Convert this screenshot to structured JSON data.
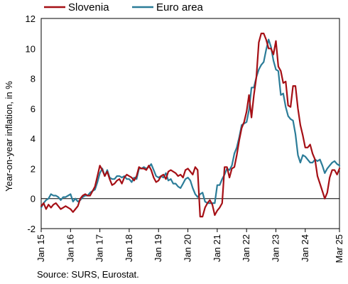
{
  "chart_data": {
    "type": "line",
    "ylabel": "Year-on-year inflation, in %",
    "source": "Source: SURS, Eurostat.",
    "ylim": [
      -2,
      12
    ],
    "y_ticks": [
      "-2",
      "0",
      "2",
      "4",
      "6",
      "8",
      "10",
      "12"
    ],
    "x_tick_labels": [
      "Jan 15",
      "Jan 16",
      "Jan 17",
      "Jan 18",
      "Jan 19",
      "Jan 20",
      "Jan 21",
      "Jan 22",
      "Jan 23",
      "Jan 24",
      "Mar 25"
    ],
    "x_tick_months": [
      0,
      12,
      24,
      36,
      48,
      60,
      72,
      84,
      96,
      108,
      122
    ],
    "legend_position": "top-left",
    "series": [
      {
        "name": "Slovenia",
        "color": "#a50f15",
        "values": [
          -0.5,
          -0.3,
          -0.7,
          -0.4,
          -0.6,
          -0.4,
          -0.3,
          -0.5,
          -0.7,
          -0.6,
          -0.5,
          -0.6,
          -0.7,
          -0.9,
          -0.7,
          -0.5,
          0.0,
          0.2,
          0.3,
          0.2,
          0.2,
          0.5,
          0.8,
          1.5,
          2.2,
          1.9,
          1.5,
          1.8,
          1.3,
          0.9,
          1.0,
          1.2,
          1.3,
          1.0,
          1.4,
          1.6,
          1.5,
          1.4,
          1.2,
          1.5,
          2.1,
          2.0,
          2.0,
          1.9,
          2.2,
          1.9,
          1.4,
          1.1,
          1.2,
          1.5,
          1.6,
          1.3,
          1.8,
          1.9,
          1.8,
          1.7,
          1.5,
          1.6,
          1.4,
          1.9,
          2.0,
          1.8,
          1.6,
          2.1,
          1.9,
          -1.2,
          -1.2,
          -0.6,
          -0.3,
          -0.1,
          -0.4,
          -1.1,
          -0.8,
          -0.6,
          -0.3,
          2.1,
          2.1,
          1.4,
          2.0,
          2.1,
          2.9,
          3.9,
          4.7,
          5.1,
          5.8,
          6.9,
          5.4,
          6.9,
          8.1,
          10.4,
          11.0,
          11.0,
          10.6,
          10.0,
          10.0,
          9.6,
          10.5,
          8.8,
          8.5,
          7.7,
          7.8,
          6.2,
          6.1,
          7.5,
          7.5,
          6.0,
          4.9,
          4.2,
          3.4,
          3.4,
          3.6,
          3.0,
          2.6,
          1.5,
          1.0,
          0.5,
          0.0,
          0.4,
          1.4,
          1.9,
          1.9,
          1.6,
          2.0
        ]
      },
      {
        "name": "Euro area",
        "color": "#2b7c98",
        "values": [
          -0.6,
          -0.3,
          -0.1,
          0.0,
          0.3,
          0.2,
          0.2,
          0.1,
          -0.1,
          0.1,
          0.1,
          0.2,
          0.3,
          -0.2,
          0.0,
          -0.2,
          -0.1,
          0.1,
          0.2,
          0.2,
          0.4,
          0.5,
          0.6,
          1.1,
          1.7,
          2.0,
          1.5,
          1.9,
          1.4,
          1.3,
          1.3,
          1.5,
          1.5,
          1.4,
          1.5,
          1.3,
          1.3,
          1.1,
          1.4,
          1.3,
          2.0,
          2.0,
          2.1,
          2.0,
          2.1,
          2.3,
          1.9,
          1.5,
          1.4,
          1.5,
          1.4,
          1.7,
          1.2,
          1.3,
          1.0,
          1.0,
          0.8,
          0.7,
          1.0,
          1.3,
          1.4,
          1.2,
          0.7,
          0.3,
          0.1,
          0.3,
          0.4,
          -0.2,
          -0.3,
          -0.3,
          -0.3,
          -0.3,
          0.9,
          0.9,
          1.3,
          1.6,
          2.0,
          1.9,
          2.2,
          3.0,
          3.4,
          4.1,
          4.9,
          5.0,
          5.1,
          5.9,
          7.4,
          7.4,
          8.1,
          8.6,
          8.9,
          9.1,
          9.9,
          10.6,
          10.1,
          9.2,
          8.6,
          8.5,
          6.9,
          7.0,
          6.1,
          5.5,
          5.3,
          5.2,
          4.3,
          2.9,
          2.4,
          2.9,
          2.8,
          2.6,
          2.4,
          2.4,
          2.6,
          2.5,
          2.6,
          2.2,
          1.7,
          2.0,
          2.2,
          2.4,
          2.5,
          2.3,
          2.2
        ]
      }
    ]
  }
}
